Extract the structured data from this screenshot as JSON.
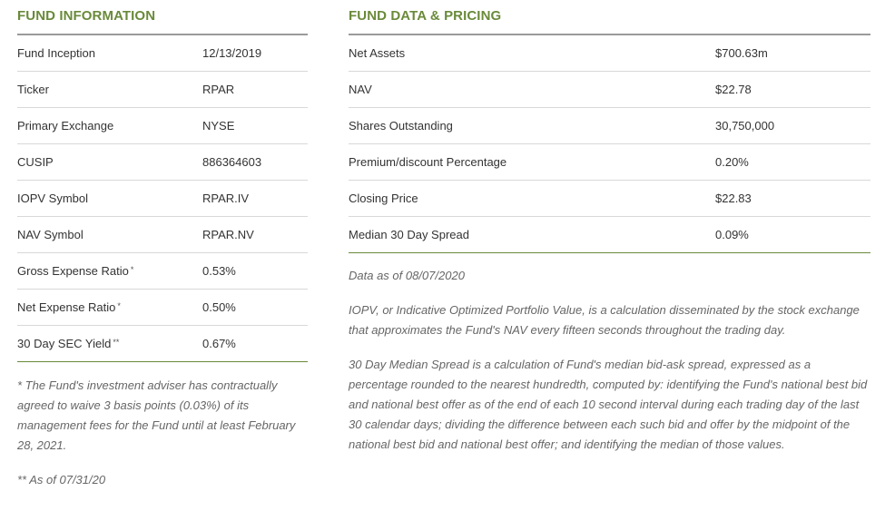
{
  "fund_information": {
    "title": "FUND INFORMATION",
    "rows": [
      {
        "label": "Fund Inception",
        "mark": "",
        "value": "12/13/2019"
      },
      {
        "label": "Ticker",
        "mark": "",
        "value": "RPAR"
      },
      {
        "label": "Primary Exchange",
        "mark": "",
        "value": "NYSE"
      },
      {
        "label": "CUSIP",
        "mark": "",
        "value": "886364603"
      },
      {
        "label": "IOPV Symbol",
        "mark": "",
        "value": "RPAR.IV"
      },
      {
        "label": "NAV Symbol",
        "mark": "",
        "value": "RPAR.NV"
      },
      {
        "label": "Gross Expense Ratio",
        "mark": "*",
        "value": "0.53%"
      },
      {
        "label": "Net Expense Ratio",
        "mark": "*",
        "value": "0.50%"
      },
      {
        "label": "30 Day SEC Yield",
        "mark": "**",
        "value": "0.67%"
      }
    ],
    "footnote_1": "* The Fund's investment adviser has contractually agreed to waive 3 basis points (0.03%) of its management fees for the Fund until at least February 28, 2021.",
    "footnote_2": "** As of 07/31/20"
  },
  "fund_data_pricing": {
    "title": "FUND DATA & PRICING",
    "rows": [
      {
        "label": "Net Assets",
        "value": "$700.63m"
      },
      {
        "label": "NAV",
        "value": "$22.78"
      },
      {
        "label": "Shares Outstanding",
        "value": "30,750,000"
      },
      {
        "label": "Premium/discount Percentage",
        "value": "0.20%"
      },
      {
        "label": "Closing Price",
        "value": "$22.83"
      },
      {
        "label": "Median 30 Day Spread",
        "value": "0.09%"
      }
    ],
    "data_as_of": "Data as of 08/07/2020",
    "iopv_note": "IOPV, or Indicative Optimized Portfolio Value, is a calculation disseminated by the stock exchange that approximates the Fund's NAV every fifteen seconds throughout the trading day.",
    "spread_note": "30 Day Median Spread is a calculation of Fund's median bid-ask spread, expressed as a percentage rounded to the nearest hundredth, computed by: identifying the Fund's national best bid and national best offer as of the end of each 10 second interval during each trading day of the last 30 calendar days; dividing the difference between each such bid and offer by the midpoint of the national best bid and national best offer; and identifying the median of those values."
  }
}
